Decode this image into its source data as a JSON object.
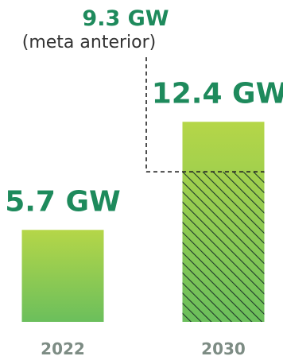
{
  "chart_data": {
    "type": "bar",
    "categories": [
      "2022",
      "2030"
    ],
    "values": [
      5.7,
      12.4
    ],
    "value_labels": [
      "5.7 GW",
      "12.4 GW"
    ],
    "unit": "GW",
    "reference": {
      "category": "2030",
      "value": 9.3,
      "label": "9.3 GW",
      "note": "(meta anterior)",
      "style": "dashed leader line, hatched fill below previous target"
    },
    "grid": false,
    "legend": "none"
  },
  "colors": {
    "bar_gradient_top": "#b5d648",
    "bar_gradient_bottom": "#6bbf5c",
    "hatch_line": "#1f3a2a",
    "value_text": "#1e8a5c",
    "category_text": "#7d8c84",
    "note_text": "#333333",
    "dashed_line": "#222222"
  }
}
